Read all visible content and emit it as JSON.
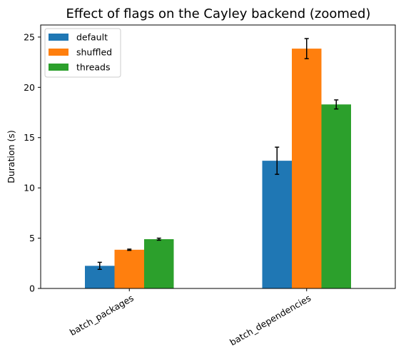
{
  "chart_data": {
    "type": "bar",
    "title": "Effect of flags on the Cayley backend (zoomed)",
    "xlabel": "",
    "ylabel": "Duration (s)",
    "categories": [
      "batch_packages",
      "batch_dependencies"
    ],
    "ylim": [
      0,
      26.2
    ],
    "yticks": [
      0,
      5,
      10,
      15,
      20,
      25
    ],
    "grid": false,
    "legend_position": "top-left",
    "series": [
      {
        "name": "default",
        "color": "#1f77b4",
        "values": [
          2.25,
          12.7
        ],
        "errors": [
          0.35,
          1.35
        ]
      },
      {
        "name": "shuffled",
        "color": "#ff7f0e",
        "values": [
          3.85,
          23.85
        ],
        "errors": [
          0.06,
          1.0
        ]
      },
      {
        "name": "threads",
        "color": "#2ca02c",
        "values": [
          4.9,
          18.3
        ],
        "errors": [
          0.1,
          0.45
        ]
      }
    ]
  }
}
